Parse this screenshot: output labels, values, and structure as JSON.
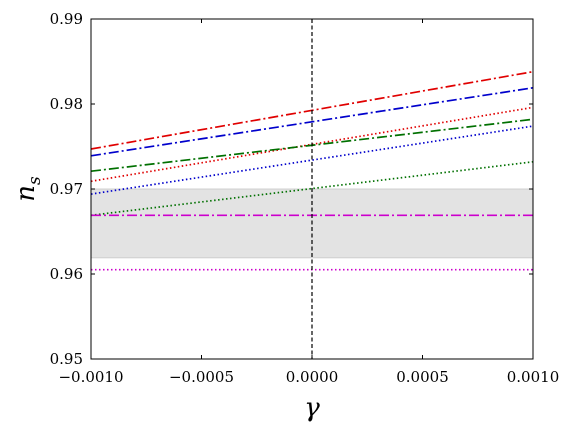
{
  "chart_data": {
    "type": "line",
    "xlabel": "γ",
    "ylabel": "n",
    "ylabel_sub": "s",
    "xlim": [
      -0.001,
      0.001
    ],
    "ylim": [
      0.95,
      0.99
    ],
    "xticks": [
      -0.001,
      -0.0005,
      0.0,
      0.0005,
      0.001
    ],
    "xtick_labels": [
      "−0.0010",
      "−0.0005",
      "0.0000",
      "0.0005",
      "0.0010"
    ],
    "yticks": [
      0.95,
      0.96,
      0.97,
      0.98,
      0.99
    ],
    "ytick_labels": [
      "0.95",
      "0.96",
      "0.97",
      "0.98",
      "0.99"
    ],
    "band": {
      "y0": 0.9619,
      "y1": 0.97,
      "color": "#e3e3e3"
    },
    "vline": {
      "x": 0.0,
      "color": "#000000"
    },
    "series": [
      {
        "style": "dashdot",
        "color": "#e00000",
        "x": [
          -0.001,
          0.001
        ],
        "y": [
          0.9747,
          0.9838
        ]
      },
      {
        "style": "dashdot",
        "color": "#0000cc",
        "x": [
          -0.001,
          0.001
        ],
        "y": [
          0.9739,
          0.9819
        ]
      },
      {
        "style": "dotted",
        "color": "#e00000",
        "x": [
          -0.001,
          0.001
        ],
        "y": [
          0.9709,
          0.9796
        ]
      },
      {
        "style": "dashdot",
        "color": "#007000",
        "x": [
          -0.001,
          0.001
        ],
        "y": [
          0.9721,
          0.9782
        ]
      },
      {
        "style": "dotted",
        "color": "#0000cc",
        "x": [
          -0.001,
          0.001
        ],
        "y": [
          0.9694,
          0.9774
        ]
      },
      {
        "style": "dotted",
        "color": "#007000",
        "x": [
          -0.001,
          0.001
        ],
        "y": [
          0.9669,
          0.9732
        ]
      },
      {
        "style": "dashdot",
        "color": "#cc00cc",
        "x": [
          -0.001,
          0.001
        ],
        "y": [
          0.9669,
          0.9669
        ]
      },
      {
        "style": "dotted",
        "color": "#cc00cc",
        "x": [
          -0.001,
          0.001
        ],
        "y": [
          0.9605,
          0.9605
        ]
      }
    ]
  }
}
